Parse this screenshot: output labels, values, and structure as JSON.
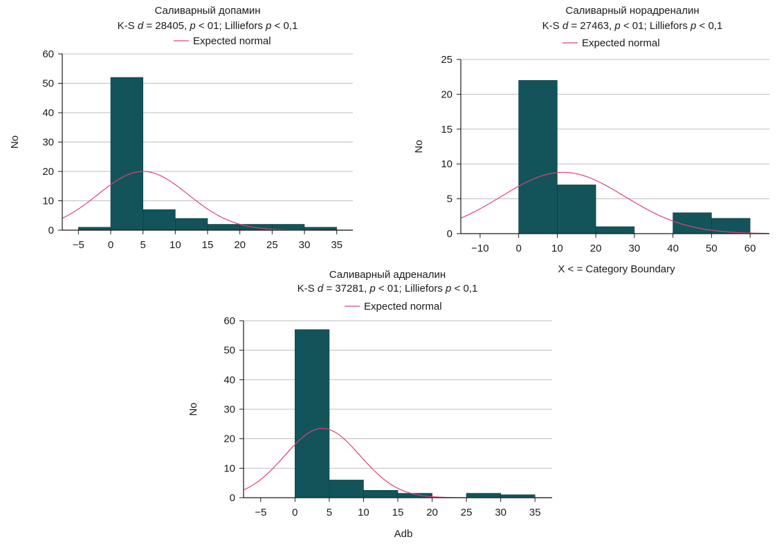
{
  "figure": {
    "legend_label": "Expected normal",
    "bar_color": "#12545a",
    "curve_color": "#e0407a",
    "grid_color": "#bdbdbd"
  },
  "chart_data": [
    {
      "type": "bar",
      "title": "Саливарный допамин",
      "subtitle": {
        "prefix": "K-S ",
        "d_sym": "d",
        "d_val": " = 28405, ",
        "p_sym1": "p",
        "mid": " < 01; Lilliefors ",
        "p_sym2": "p",
        "suffix": " < 0,1"
      },
      "legend": "Expected normal",
      "xlabel": "",
      "ylabel": "No",
      "xlim": [
        -7.5,
        37.5
      ],
      "ylim": [
        0,
        60
      ],
      "xticks": [
        -5,
        0,
        5,
        10,
        15,
        20,
        25,
        30,
        35
      ],
      "xtick_labels": [
        "−5",
        "0",
        "5",
        "10",
        "15",
        "20",
        "25",
        "30",
        "35"
      ],
      "yticks": [
        0,
        10,
        20,
        30,
        40,
        50,
        60
      ],
      "bins": [
        {
          "x0": -5,
          "x1": 0,
          "value": 1
        },
        {
          "x0": 0,
          "x1": 5,
          "value": 52
        },
        {
          "x0": 5,
          "x1": 10,
          "value": 7
        },
        {
          "x0": 10,
          "x1": 15,
          "value": 4
        },
        {
          "x0": 15,
          "x1": 20,
          "value": 2
        },
        {
          "x0": 20,
          "x1": 25,
          "value": 2
        },
        {
          "x0": 25,
          "x1": 30,
          "value": 2
        },
        {
          "x0": 30,
          "x1": 35,
          "value": 1
        }
      ],
      "normal": {
        "mu": 5,
        "sigma": 7,
        "peak": 20
      }
    },
    {
      "type": "bar",
      "title": "Саливарный норадреналин",
      "subtitle": {
        "prefix": "K-S ",
        "d_sym": "d",
        "d_val": " = 27463, ",
        "p_sym1": "p",
        "mid": " < 01; Lilliefors ",
        "p_sym2": "p",
        "suffix": " < 0,1"
      },
      "legend": "Expected normal",
      "xlabel": "X < = Category Boundary",
      "ylabel": "No",
      "xlim": [
        -15,
        65
      ],
      "ylim": [
        0,
        25
      ],
      "xticks": [
        -10,
        0,
        10,
        20,
        30,
        40,
        50,
        60
      ],
      "xtick_labels": [
        "−10",
        "0",
        "10",
        "20",
        "30",
        "40",
        "50",
        "60"
      ],
      "yticks": [
        0,
        5,
        10,
        15,
        20,
        25
      ],
      "bins": [
        {
          "x0": 0,
          "x1": 10,
          "value": 22
        },
        {
          "x0": 10,
          "x1": 20,
          "value": 7
        },
        {
          "x0": 20,
          "x1": 30,
          "value": 1
        },
        {
          "x0": 40,
          "x1": 50,
          "value": 3
        },
        {
          "x0": 50,
          "x1": 60,
          "value": 2.2
        }
      ],
      "normal": {
        "mu": 11.5,
        "sigma": 16,
        "peak": 8.8
      }
    },
    {
      "type": "bar",
      "title": "Саливарный адреналин",
      "subtitle": {
        "prefix": "K-S ",
        "d_sym": "d",
        "d_val": " = 37281, ",
        "p_sym1": "p",
        "mid": " < 01; Lilliefors ",
        "p_sym2": "p",
        "suffix": " < 0,1"
      },
      "legend": "Expected normal",
      "xlabel": "Adb",
      "ylabel": "No",
      "xlim": [
        -7.5,
        37.5
      ],
      "ylim": [
        0,
        60
      ],
      "xticks": [
        -5,
        0,
        5,
        10,
        15,
        20,
        25,
        30,
        35
      ],
      "xtick_labels": [
        "−5",
        "0",
        "5",
        "10",
        "15",
        "20",
        "25",
        "30",
        "35"
      ],
      "yticks": [
        0,
        10,
        20,
        30,
        40,
        50,
        60
      ],
      "bins": [
        {
          "x0": 0,
          "x1": 5,
          "value": 57
        },
        {
          "x0": 5,
          "x1": 10,
          "value": 6
        },
        {
          "x0": 10,
          "x1": 15,
          "value": 2.5
        },
        {
          "x0": 15,
          "x1": 20,
          "value": 1.5
        },
        {
          "x0": 25,
          "x1": 30,
          "value": 1.5
        },
        {
          "x0": 30,
          "x1": 35,
          "value": 1
        }
      ],
      "normal": {
        "mu": 4,
        "sigma": 5.5,
        "peak": 23.5
      }
    }
  ]
}
